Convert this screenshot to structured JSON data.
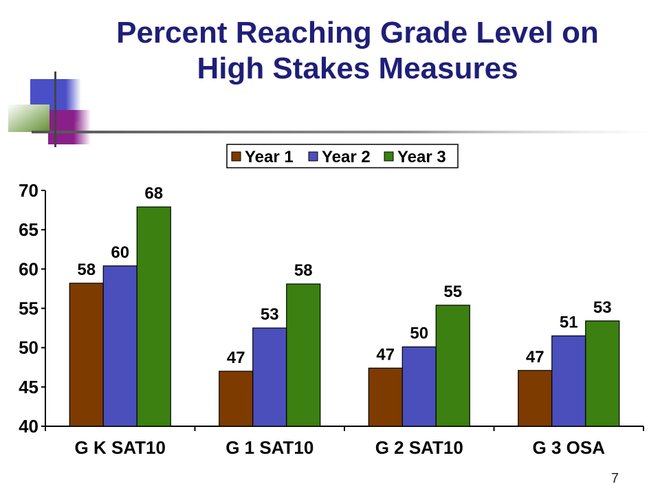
{
  "slide": {
    "title_line1": "Percent Reaching Grade Level on",
    "title_line2": "High Stakes Measures",
    "slide_number": "7"
  },
  "colors": {
    "title": "#1f1f78",
    "accent_blue": "#4a4fc8",
    "accent_purple": "#8a1f8a",
    "accent_green": "#6c9a38"
  },
  "chart_data": {
    "type": "bar",
    "categories": [
      "G K SAT10",
      "G 1 SAT10",
      "G 2 SAT10",
      "G 3 OSA"
    ],
    "series": [
      {
        "name": "Year 1",
        "color": "#7d3b00",
        "values": [
          58,
          47,
          47,
          47
        ],
        "plot_values": [
          58.2,
          47.0,
          47.4,
          47.1
        ]
      },
      {
        "name": "Year 2",
        "color": "#4b4fbb",
        "values": [
          60,
          53,
          50,
          51
        ],
        "plot_values": [
          60.4,
          52.5,
          50.1,
          51.5
        ]
      },
      {
        "name": "Year 3",
        "color": "#3b8010",
        "values": [
          68,
          58,
          55,
          53
        ],
        "plot_values": [
          67.9,
          58.1,
          55.4,
          53.4
        ]
      }
    ],
    "ylim": [
      40,
      70
    ],
    "yticks": [
      40,
      45,
      50,
      55,
      60,
      65,
      70
    ],
    "grid": false,
    "legend_position": "top-right",
    "title": "",
    "xlabel": "",
    "ylabel": ""
  }
}
